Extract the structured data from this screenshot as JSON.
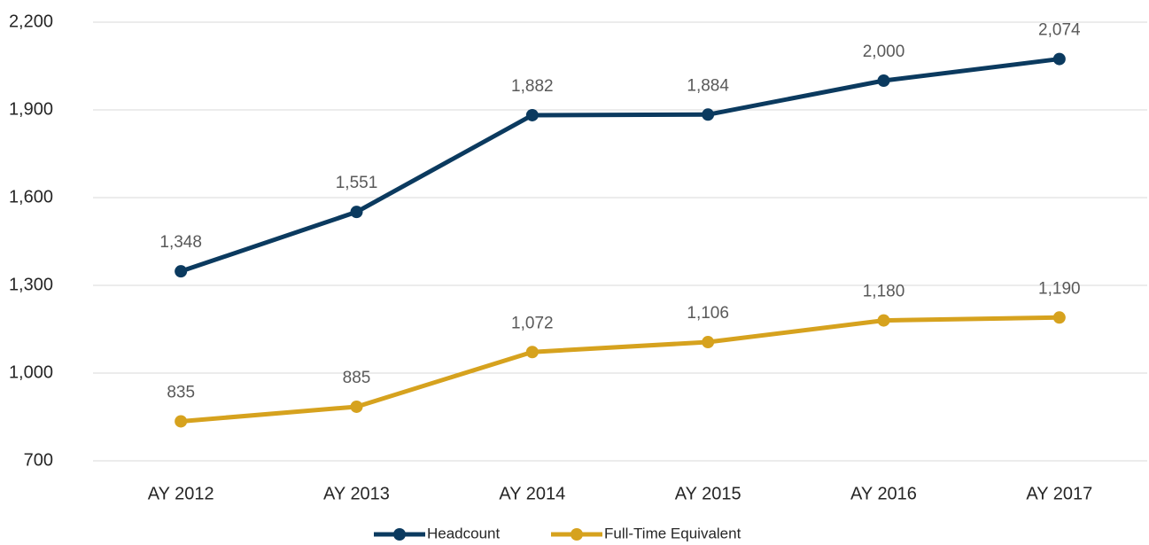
{
  "chart_data": {
    "type": "line",
    "categories": [
      "AY 2012",
      "AY 2013",
      "AY 2014",
      "AY 2015",
      "AY 2016",
      "AY 2017"
    ],
    "series": [
      {
        "name": "Headcount",
        "color": "#0b3a5f",
        "values": [
          1348,
          1551,
          1882,
          1884,
          2000,
          2074
        ],
        "value_labels": [
          "1,348",
          "1,551",
          "1,882",
          "1,884",
          "2,000",
          "2,074"
        ]
      },
      {
        "name": "Full-Time Equivalent",
        "color": "#d6a21e",
        "values": [
          835,
          885,
          1072,
          1106,
          1180,
          1190
        ],
        "value_labels": [
          "835",
          "885",
          "1,072",
          "1,106",
          "1,180",
          "1,190"
        ]
      }
    ],
    "ylim": [
      700,
      2200
    ],
    "yticks": [
      700,
      {
        "value": 1000,
        "label": "1,000"
      },
      {
        "value": 1300,
        "label": "1,300"
      },
      {
        "value": 1600,
        "label": "1,600"
      },
      {
        "value": 1900,
        "label": "1,900"
      },
      {
        "value": 2200,
        "label": "2,200"
      }
    ],
    "grid": true,
    "legend": "bottom"
  }
}
